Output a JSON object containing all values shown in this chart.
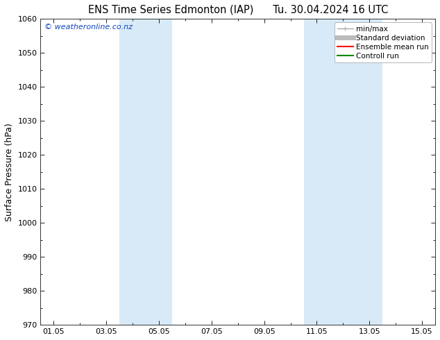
{
  "title_left": "ENS Time Series Edmonton (IAP)",
  "title_right": "Tu. 30.04.2024 16 UTC",
  "ylabel": "Surface Pressure (hPa)",
  "ylim": [
    970,
    1060
  ],
  "yticks": [
    970,
    980,
    990,
    1000,
    1010,
    1020,
    1030,
    1040,
    1050,
    1060
  ],
  "xtick_labels": [
    "01.05",
    "03.05",
    "05.05",
    "07.05",
    "09.05",
    "11.05",
    "13.05",
    "15.05"
  ],
  "xtick_positions": [
    1,
    3,
    5,
    7,
    9,
    11,
    13,
    15
  ],
  "xlim": [
    0.5,
    15.5
  ],
  "watermark": "© weatheronline.co.nz",
  "watermark_color": "#1144bb",
  "bg_color": "#ffffff",
  "plot_bg_color": "#ffffff",
  "shaded_bands": [
    {
      "x_start": 3.5,
      "x_end": 5.5,
      "color": "#d8eaf8"
    },
    {
      "x_start": 10.5,
      "x_end": 13.5,
      "color": "#d8eaf8"
    }
  ],
  "legend_items": [
    {
      "label": "min/max",
      "color": "#aaaaaa",
      "lw": 1.0,
      "ls": "-",
      "marker": true
    },
    {
      "label": "Standard deviation",
      "color": "#bbbbbb",
      "lw": 5.0,
      "ls": "-"
    },
    {
      "label": "Ensemble mean run",
      "color": "#ff0000",
      "lw": 1.5,
      "ls": "-"
    },
    {
      "label": "Controll run",
      "color": "#008800",
      "lw": 1.5,
      "ls": "-"
    }
  ],
  "title_fontsize": 10.5,
  "axis_fontsize": 9,
  "tick_fontsize": 8,
  "legend_fontsize": 7.5,
  "watermark_fontsize": 8
}
